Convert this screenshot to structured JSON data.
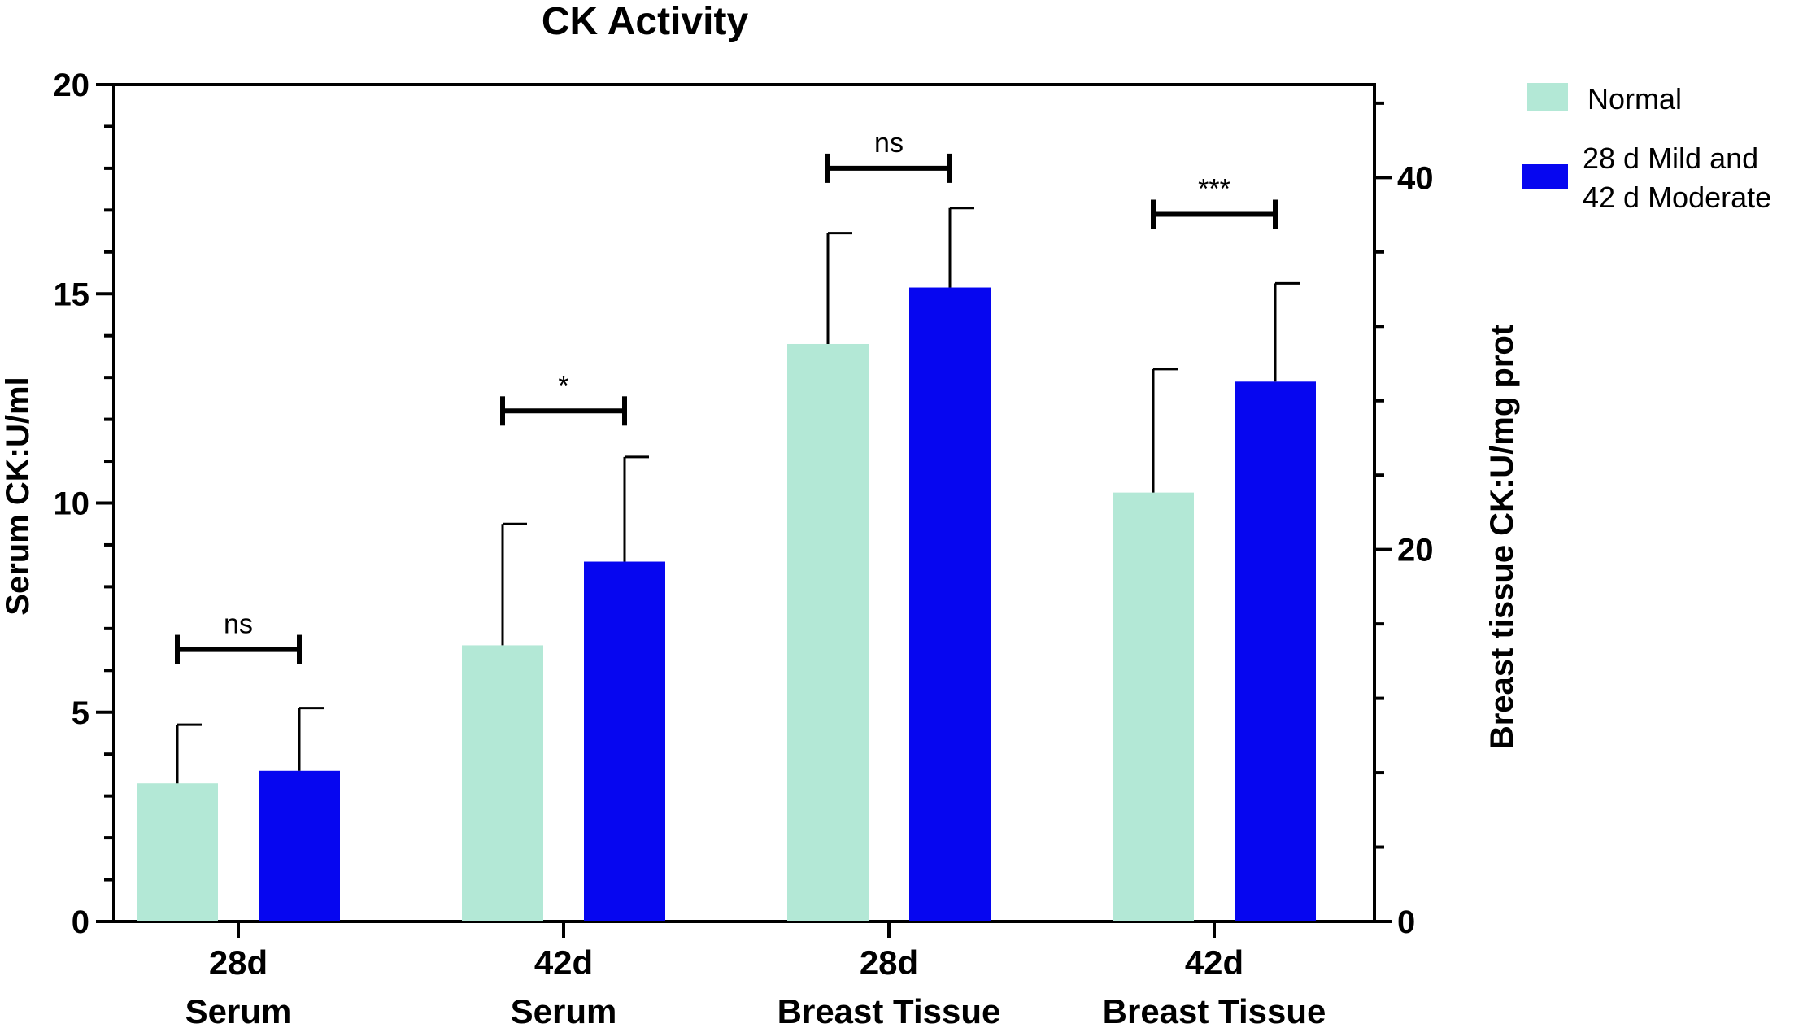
{
  "chart_data": {
    "type": "bar",
    "title": "CK Activity",
    "ylabel": "Serum CK:U/ml",
    "y2label": "Breast tissue CK:U/mg prot",
    "ylim": [
      0,
      20
    ],
    "y2lim": [
      0,
      45
    ],
    "yticks": [
      "0",
      "5",
      "10",
      "15",
      "20"
    ],
    "y2ticks": [
      "0",
      "20",
      "40"
    ],
    "categories": [
      {
        "line1": "28d",
        "line2": "Serum"
      },
      {
        "line1": "42d",
        "line2": "Serum"
      },
      {
        "line1": "28d",
        "line2": "Breast Tissue"
      },
      {
        "line1": "42d",
        "line2": "Breast Tissue"
      }
    ],
    "series": [
      {
        "name": "Normal",
        "color": "#b3e8d6",
        "values": [
          3.3,
          6.6,
          13.8,
          10.25
        ],
        "errors": [
          1.4,
          2.9,
          2.65,
          2.95
        ]
      },
      {
        "name": "28 d Mild and\n42 d Moderate",
        "color": "#0606f0",
        "values": [
          3.6,
          8.6,
          15.15,
          12.9
        ],
        "errors": [
          1.5,
          2.5,
          1.9,
          2.35
        ]
      }
    ],
    "significance": [
      {
        "label": "ns",
        "y": 6.5
      },
      {
        "label": "*",
        "y": 12.2
      },
      {
        "label": "ns",
        "y": 18.0
      },
      {
        "label": "***",
        "y": 16.9
      }
    ],
    "legend": {
      "position": "top-right",
      "labels": [
        "Normal",
        "28 d Mild and",
        "42 d Moderate"
      ]
    }
  }
}
